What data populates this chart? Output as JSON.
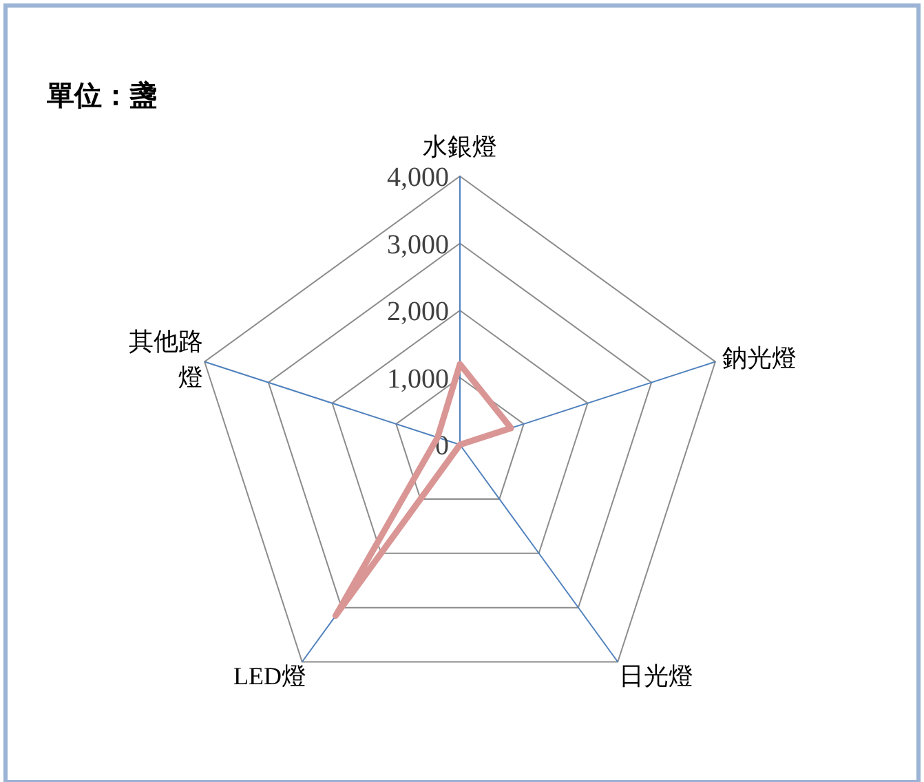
{
  "chart_data": {
    "type": "radar",
    "title": "單位：盞",
    "categories": [
      "水銀燈",
      "鈉光燈",
      "日光燈",
      "LED燈",
      "其他路燈"
    ],
    "series": [
      {
        "color": "#d99694",
        "values": [
          1200,
          800,
          0,
          3150,
          350
        ]
      }
    ],
    "ylim": [
      0,
      4000
    ],
    "yticks": [
      {
        "value": 0,
        "label": "0"
      },
      {
        "value": 1000,
        "label": "1,000"
      },
      {
        "value": 2000,
        "label": "2,000"
      },
      {
        "value": 3000,
        "label": "3,000"
      },
      {
        "value": 4000,
        "label": "4,000"
      }
    ],
    "grid": true,
    "marker": "none",
    "line_style": "solid"
  }
}
